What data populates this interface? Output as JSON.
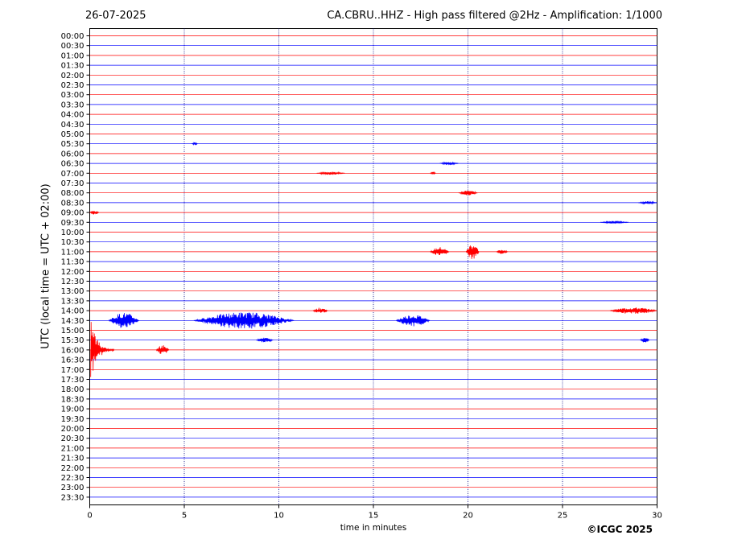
{
  "header": {
    "date": "26-07-2025",
    "title": "CA.CBRU..HHZ - High pass filtered @2Hz - Amplification: 1/1000"
  },
  "footer": {
    "copyright": "©ICGC 2025"
  },
  "colors": {
    "trace_a": "#ff0000",
    "trace_b": "#0000ff",
    "grid": "#000080"
  },
  "chart_data": {
    "type": "line",
    "title": "CA.CBRU..HHZ - High pass filtered @2Hz - Amplification: 1/1000",
    "xlabel": "time in minutes",
    "ylabel": "UTC (local time = UTC + 02:00)",
    "xlim": [
      0,
      30
    ],
    "xticks": [
      0,
      5,
      10,
      15,
      20,
      25,
      30
    ],
    "vertical_grid_minutes": [
      5,
      10,
      15,
      20,
      25
    ],
    "grid_style": "dotted",
    "rows": [
      "00:00",
      "00:30",
      "01:00",
      "01:30",
      "02:00",
      "02:30",
      "03:00",
      "03:30",
      "04:00",
      "04:30",
      "05:00",
      "05:30",
      "06:00",
      "06:30",
      "07:00",
      "07:30",
      "08:00",
      "08:30",
      "09:00",
      "09:30",
      "10:00",
      "10:30",
      "11:00",
      "11:30",
      "12:00",
      "12:30",
      "13:00",
      "13:30",
      "14:00",
      "14:30",
      "15:00",
      "15:30",
      "16:00",
      "16:30",
      "17:00",
      "17:30",
      "18:00",
      "18:30",
      "19:00",
      "19:30",
      "20:00",
      "20:30",
      "21:00",
      "21:30",
      "22:00",
      "22:30",
      "23:00",
      "23:30"
    ],
    "row_colors": "alternating red (hour) / blue (half hour)",
    "events": [
      {
        "row": "05:30",
        "start": 5.4,
        "end": 5.7,
        "amp": 0.15
      },
      {
        "row": "06:30",
        "start": 18.5,
        "end": 19.5,
        "amp": 0.15
      },
      {
        "row": "07:00",
        "start": 12.0,
        "end": 13.5,
        "amp": 0.15
      },
      {
        "row": "07:00",
        "start": 18.0,
        "end": 18.3,
        "amp": 0.15
      },
      {
        "row": "08:00",
        "start": 19.5,
        "end": 20.5,
        "amp": 0.25
      },
      {
        "row": "08:30",
        "start": 29.0,
        "end": 30.0,
        "amp": 0.15
      },
      {
        "row": "09:00",
        "start": 0.0,
        "end": 0.5,
        "amp": 0.2
      },
      {
        "row": "09:30",
        "start": 27.0,
        "end": 28.5,
        "amp": 0.12
      },
      {
        "row": "11:00",
        "start": 18.0,
        "end": 19.0,
        "amp": 0.5
      },
      {
        "row": "11:00",
        "start": 19.9,
        "end": 20.6,
        "amp": 0.9
      },
      {
        "row": "11:00",
        "start": 21.5,
        "end": 22.1,
        "amp": 0.25
      },
      {
        "row": "14:00",
        "start": 11.8,
        "end": 12.6,
        "amp": 0.3
      },
      {
        "row": "14:00",
        "start": 27.5,
        "end": 30.0,
        "amp": 0.35
      },
      {
        "row": "14:30",
        "start": 1.0,
        "end": 2.6,
        "amp": 0.8
      },
      {
        "row": "14:30",
        "start": 5.5,
        "end": 10.8,
        "amp": 0.85
      },
      {
        "row": "14:30",
        "start": 16.2,
        "end": 18.0,
        "amp": 0.6
      },
      {
        "row": "15:30",
        "start": 8.8,
        "end": 9.7,
        "amp": 0.25
      },
      {
        "row": "15:30",
        "start": 29.1,
        "end": 29.6,
        "amp": 0.25
      },
      {
        "row": "16:00",
        "start": 0.05,
        "end": 1.3,
        "amp": 3.5
      },
      {
        "row": "16:00",
        "start": 3.5,
        "end": 4.2,
        "amp": 0.5
      }
    ],
    "ylim": [
      "00:00",
      "23:30"
    ],
    "legend": "none"
  }
}
